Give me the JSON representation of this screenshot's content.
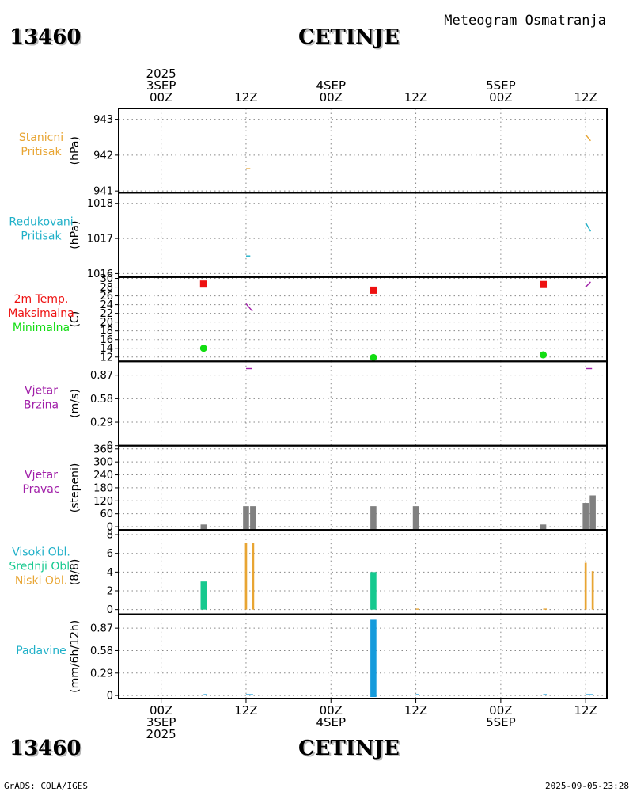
{
  "station": {
    "id": "13460",
    "name": "CETINJE"
  },
  "doc_title": "Meteogram Osmatranja",
  "footer": {
    "left": "GrADS: COLA/IGES",
    "right": "2025-09-05-23:28"
  },
  "colors": {
    "orange": "#e8a533",
    "teal": "#1fb0c8",
    "red": "#ee1111",
    "green": "#11dd11",
    "purple": "#a01ea8",
    "gray": "#808080",
    "cloud_mid": "#16c98f",
    "precip": "#159bdc"
  },
  "chart_data": {
    "type": "meteogram",
    "x_unit": "hours since 2025-09-03 00Z",
    "x_range": [
      -6,
      63
    ],
    "top_axis": [
      {
        "hour": 0,
        "lines": [
          "2025",
          "3SEP",
          "00Z"
        ]
      },
      {
        "hour": 12,
        "lines": [
          "12Z"
        ]
      },
      {
        "hour": 24,
        "lines": [
          "4SEP",
          "00Z"
        ]
      },
      {
        "hour": 36,
        "lines": [
          "12Z"
        ]
      },
      {
        "hour": 48,
        "lines": [
          "5SEP",
          "00Z"
        ]
      },
      {
        "hour": 60,
        "lines": [
          "12Z"
        ]
      }
    ],
    "bottom_axis": [
      {
        "hour": 0,
        "lines": [
          "00Z",
          "3SEP",
          "2025"
        ]
      },
      {
        "hour": 12,
        "lines": [
          "12Z"
        ]
      },
      {
        "hour": 24,
        "lines": [
          "00Z",
          "4SEP"
        ]
      },
      {
        "hour": 36,
        "lines": [
          "12Z"
        ]
      },
      {
        "hour": 48,
        "lines": [
          "00Z",
          "5SEP"
        ]
      },
      {
        "hour": 60,
        "lines": [
          "12Z"
        ]
      }
    ],
    "panels": [
      {
        "id": "station-pressure",
        "labels": [
          {
            "text": "Stanicni",
            "color": "#e8a533"
          },
          {
            "text": "Pritisak",
            "color": "#e8a533"
          }
        ],
        "unit": "(hPa)",
        "ylim": [
          940.95,
          943.3
        ],
        "ticks": [
          941,
          942,
          943
        ],
        "series": [
          {
            "type": "line",
            "color": "#e8a533",
            "points": [
              [
                12,
                941.62
              ],
              [
                12.6,
                941.62
              ]
            ]
          },
          {
            "type": "line",
            "color": "#e8a533",
            "points": [
              [
                60,
                942.57
              ],
              [
                60.7,
                942.4
              ]
            ]
          }
        ]
      },
      {
        "id": "reduced-pressure",
        "labels": [
          {
            "text": "Redukovani",
            "color": "#1fb0c8"
          },
          {
            "text": "Pritisak",
            "color": "#1fb0c8"
          }
        ],
        "unit": "(hPa)",
        "ylim": [
          1015.9,
          1018.3
        ],
        "ticks": [
          1016,
          1017,
          1018
        ],
        "series": [
          {
            "type": "line",
            "color": "#1fb0c8",
            "points": [
              [
                12,
                1016.5
              ],
              [
                12.6,
                1016.5
              ]
            ]
          },
          {
            "type": "line",
            "color": "#1fb0c8",
            "points": [
              [
                60,
                1017.45
              ],
              [
                60.7,
                1017.2
              ]
            ]
          }
        ]
      },
      {
        "id": "temperature",
        "labels": [
          {
            "text": "2m Temp.",
            "color": "#ee1111"
          },
          {
            "text": "Maksimalna",
            "color": "#ee1111"
          },
          {
            "text": "Minimalna",
            "color": "#11dd11"
          }
        ],
        "unit": "(C)",
        "ylim": [
          11,
          30.3
        ],
        "ticks": [
          12,
          14,
          16,
          18,
          20,
          22,
          24,
          26,
          28,
          30
        ],
        "series": [
          {
            "type": "line",
            "color": "#a01ea8",
            "points": [
              [
                12,
                24.2
              ],
              [
                12.9,
                22.5
              ]
            ]
          },
          {
            "type": "line",
            "color": "#a01ea8",
            "points": [
              [
                60,
                28
              ],
              [
                60.7,
                29.2
              ]
            ]
          },
          {
            "type": "squares",
            "color": "#ee1111",
            "points": [
              [
                6,
                28.7
              ],
              [
                30,
                27.3
              ],
              [
                54,
                28.6
              ]
            ]
          },
          {
            "type": "circles",
            "color": "#11dd11",
            "points": [
              [
                6,
                14
              ],
              [
                30,
                11.9
              ],
              [
                54,
                12.5
              ]
            ]
          }
        ]
      },
      {
        "id": "wind-speed",
        "labels": [
          {
            "text": "Vjetar",
            "color": "#a01ea8"
          },
          {
            "text": "Brzina",
            "color": "#a01ea8"
          }
        ],
        "unit": "(m/s)",
        "ylim": [
          0,
          1.04
        ],
        "ticks": [
          0,
          0.29,
          0.58,
          0.87
        ],
        "tick_labels": [
          "0",
          "0.29",
          "0.58",
          "0.87"
        ],
        "series": [
          {
            "type": "line",
            "color": "#a01ea8",
            "points": [
              [
                12,
                0.95
              ],
              [
                12.9,
                0.95
              ]
            ]
          },
          {
            "type": "line",
            "color": "#a01ea8",
            "points": [
              [
                60,
                0.95
              ],
              [
                60.9,
                0.95
              ]
            ]
          }
        ]
      },
      {
        "id": "wind-direction",
        "labels": [
          {
            "text": "Vjetar",
            "color": "#a01ea8"
          },
          {
            "text": "Pravac",
            "color": "#a01ea8"
          }
        ],
        "unit": "(stepeni)",
        "ylim": [
          -15,
          375
        ],
        "ticks": [
          0,
          60,
          120,
          180,
          240,
          300,
          360
        ],
        "series": [
          {
            "type": "bars",
            "color": "#808080",
            "width": 0.85,
            "base": -15,
            "points": [
              [
                6,
                10
              ],
              [
                12,
                95
              ],
              [
                13,
                95
              ],
              [
                30,
                95
              ],
              [
                36,
                95
              ],
              [
                54,
                10
              ],
              [
                60,
                110
              ],
              [
                61,
                145
              ]
            ]
          }
        ]
      },
      {
        "id": "clouds",
        "labels": [
          {
            "text": "Visoki Obl.",
            "color": "#1fb0c8"
          },
          {
            "text": "Srednji Obl.",
            "color": "#16c98f"
          },
          {
            "text": "Niski Obl.",
            "color": "#e8a533"
          }
        ],
        "unit": "(8/8)",
        "ylim": [
          -0.5,
          8.5
        ],
        "ticks": [
          0,
          2,
          4,
          6,
          8
        ],
        "series": [
          {
            "type": "bars",
            "color": "#16c98f",
            "width": 0.85,
            "base": 0,
            "points": [
              [
                6,
                3
              ],
              [
                30,
                4
              ]
            ]
          },
          {
            "type": "bars",
            "color": "#e8a533",
            "width": 0.3,
            "base": 0,
            "points": [
              [
                12,
                7.1
              ],
              [
                13,
                7.1
              ],
              [
                60,
                5
              ],
              [
                61,
                4.1
              ]
            ]
          },
          {
            "type": "line",
            "color": "#e8a533",
            "points": [
              [
                36,
                0.05
              ],
              [
                36.5,
                0.05
              ]
            ]
          },
          {
            "type": "line",
            "color": "#e8a533",
            "points": [
              [
                54,
                0.05
              ],
              [
                54.5,
                0.05
              ]
            ]
          }
        ]
      },
      {
        "id": "precipitation",
        "labels": [
          {
            "text": "Padavine",
            "color": "#1fb0c8"
          }
        ],
        "unit": "(mm/6h/12h)",
        "ylim": [
          -0.04,
          1.05
        ],
        "ticks": [
          0,
          0.29,
          0.58,
          0.87
        ],
        "tick_labels": [
          "0",
          "0.29",
          "0.58",
          "0.87"
        ],
        "series": [
          {
            "type": "bars",
            "color": "#159bdc",
            "width": 0.85,
            "base": -0.02,
            "points": [
              [
                30,
                0.98
              ]
            ]
          },
          {
            "type": "line",
            "color": "#159bdc",
            "points": [
              [
                6,
                0.01
              ],
              [
                6.5,
                0.01
              ]
            ]
          },
          {
            "type": "line",
            "color": "#159bdc",
            "points": [
              [
                12,
                0.01
              ],
              [
                13,
                0.01
              ]
            ]
          },
          {
            "type": "line",
            "color": "#159bdc",
            "points": [
              [
                36,
                0.01
              ],
              [
                36.5,
                0.01
              ]
            ]
          },
          {
            "type": "line",
            "color": "#159bdc",
            "points": [
              [
                54,
                0.01
              ],
              [
                54.5,
                0.01
              ]
            ]
          },
          {
            "type": "line",
            "color": "#159bdc",
            "points": [
              [
                60,
                0.01
              ],
              [
                61,
                0.01
              ]
            ]
          }
        ]
      }
    ]
  }
}
